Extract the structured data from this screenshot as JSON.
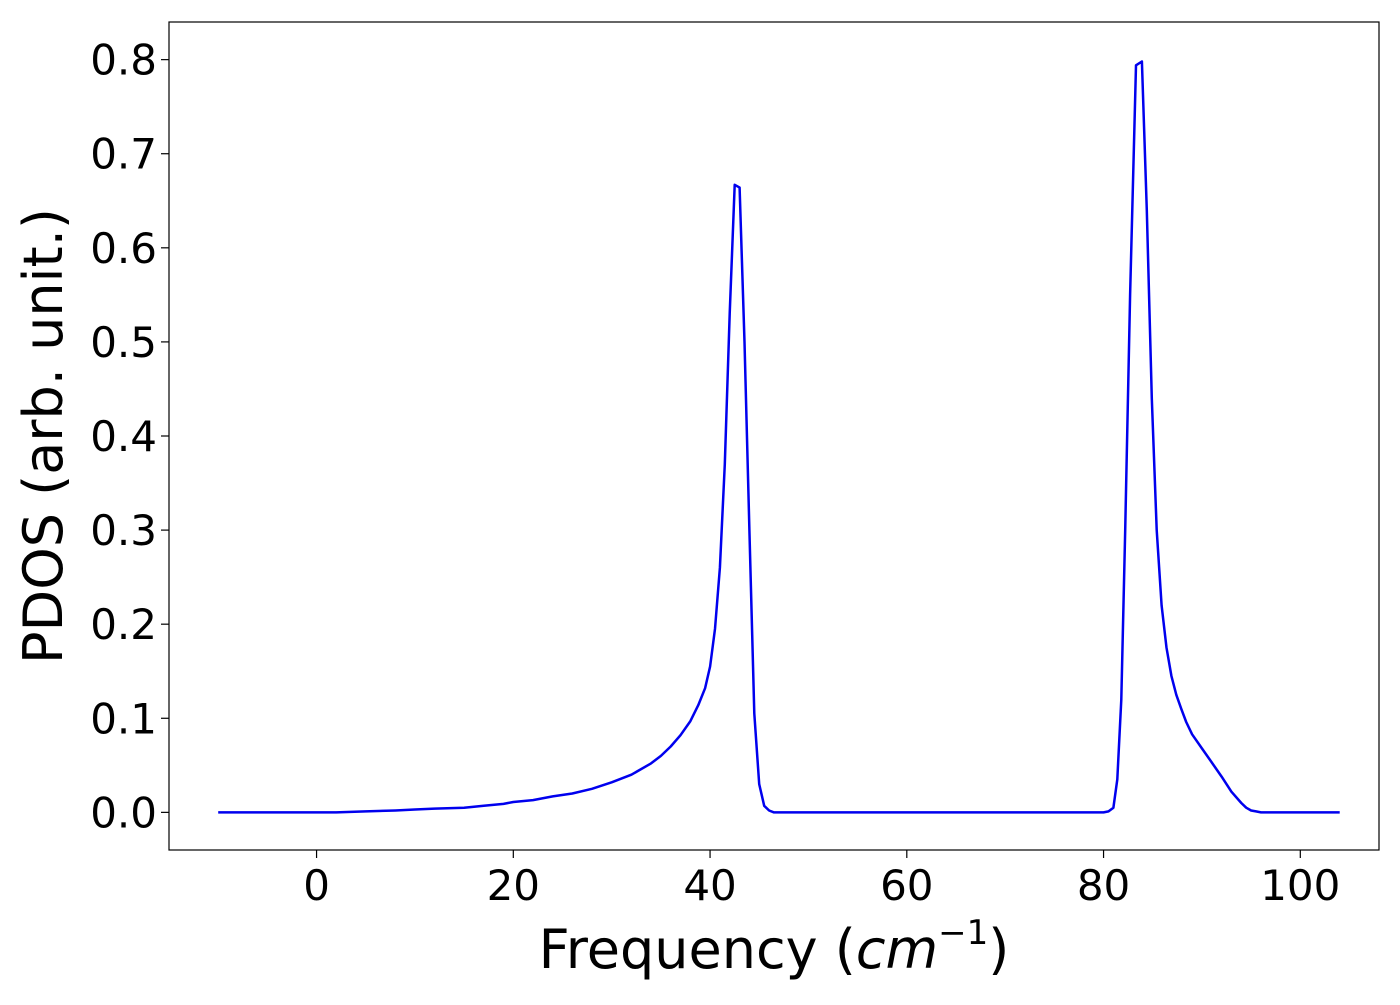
{
  "chart_data": {
    "type": "line",
    "title": "",
    "xlabel_text": "Frequency (",
    "xlabel_unit": "cm",
    "xlabel_exp": "−1",
    "xlabel_close": ")",
    "ylabel": "PDOS (arb. unit.)",
    "xlim": [
      -15,
      108
    ],
    "ylim": [
      -0.04,
      0.84
    ],
    "xticks": [
      0,
      20,
      40,
      60,
      80,
      100
    ],
    "xtick_labels": [
      "0",
      "20",
      "40",
      "60",
      "80",
      "100"
    ],
    "yticks": [
      0.0,
      0.1,
      0.2,
      0.3,
      0.4,
      0.5,
      0.6,
      0.7,
      0.8
    ],
    "ytick_labels": [
      "0.0",
      "0.1",
      "0.2",
      "0.3",
      "0.4",
      "0.5",
      "0.6",
      "0.7",
      "0.8"
    ],
    "grid": false,
    "legend": "none",
    "series": [
      {
        "color": "#0000ee",
        "x": [
          -10,
          0,
          2,
          5,
          8,
          10,
          12,
          15,
          17,
          19,
          20,
          22,
          24,
          26,
          28,
          30,
          32,
          34,
          35,
          36,
          37,
          38,
          38.8,
          39.5,
          40,
          40.5,
          41,
          41.5,
          42,
          42.5,
          43,
          43.5,
          44,
          44.5,
          45,
          45.5,
          46,
          46.5,
          47,
          50,
          60,
          70,
          78,
          80,
          80.5,
          81,
          81.4,
          81.8,
          82.2,
          82.7,
          83.3,
          83.9,
          84.4,
          84.9,
          85.4,
          85.9,
          86.4,
          86.9,
          87.4,
          87.9,
          88.4,
          89,
          90,
          91,
          92,
          93,
          94,
          94.5,
          95,
          95.5,
          96,
          97,
          100,
          104
        ],
        "y": [
          0.0,
          0.0,
          0.0,
          0.001,
          0.002,
          0.003,
          0.004,
          0.005,
          0.007,
          0.009,
          0.011,
          0.013,
          0.017,
          0.02,
          0.025,
          0.032,
          0.04,
          0.052,
          0.06,
          0.07,
          0.082,
          0.097,
          0.114,
          0.132,
          0.155,
          0.195,
          0.26,
          0.37,
          0.53,
          0.667,
          0.664,
          0.5,
          0.3,
          0.105,
          0.03,
          0.007,
          0.002,
          0.0,
          0.0,
          0.0,
          0.0,
          0.0,
          0.0,
          0.0,
          0.001,
          0.005,
          0.035,
          0.12,
          0.3,
          0.55,
          0.794,
          0.798,
          0.64,
          0.44,
          0.3,
          0.22,
          0.175,
          0.145,
          0.125,
          0.11,
          0.096,
          0.083,
          0.068,
          0.053,
          0.038,
          0.022,
          0.01,
          0.005,
          0.002,
          0.001,
          0.0,
          0.0,
          0.0,
          0.0
        ]
      }
    ]
  }
}
